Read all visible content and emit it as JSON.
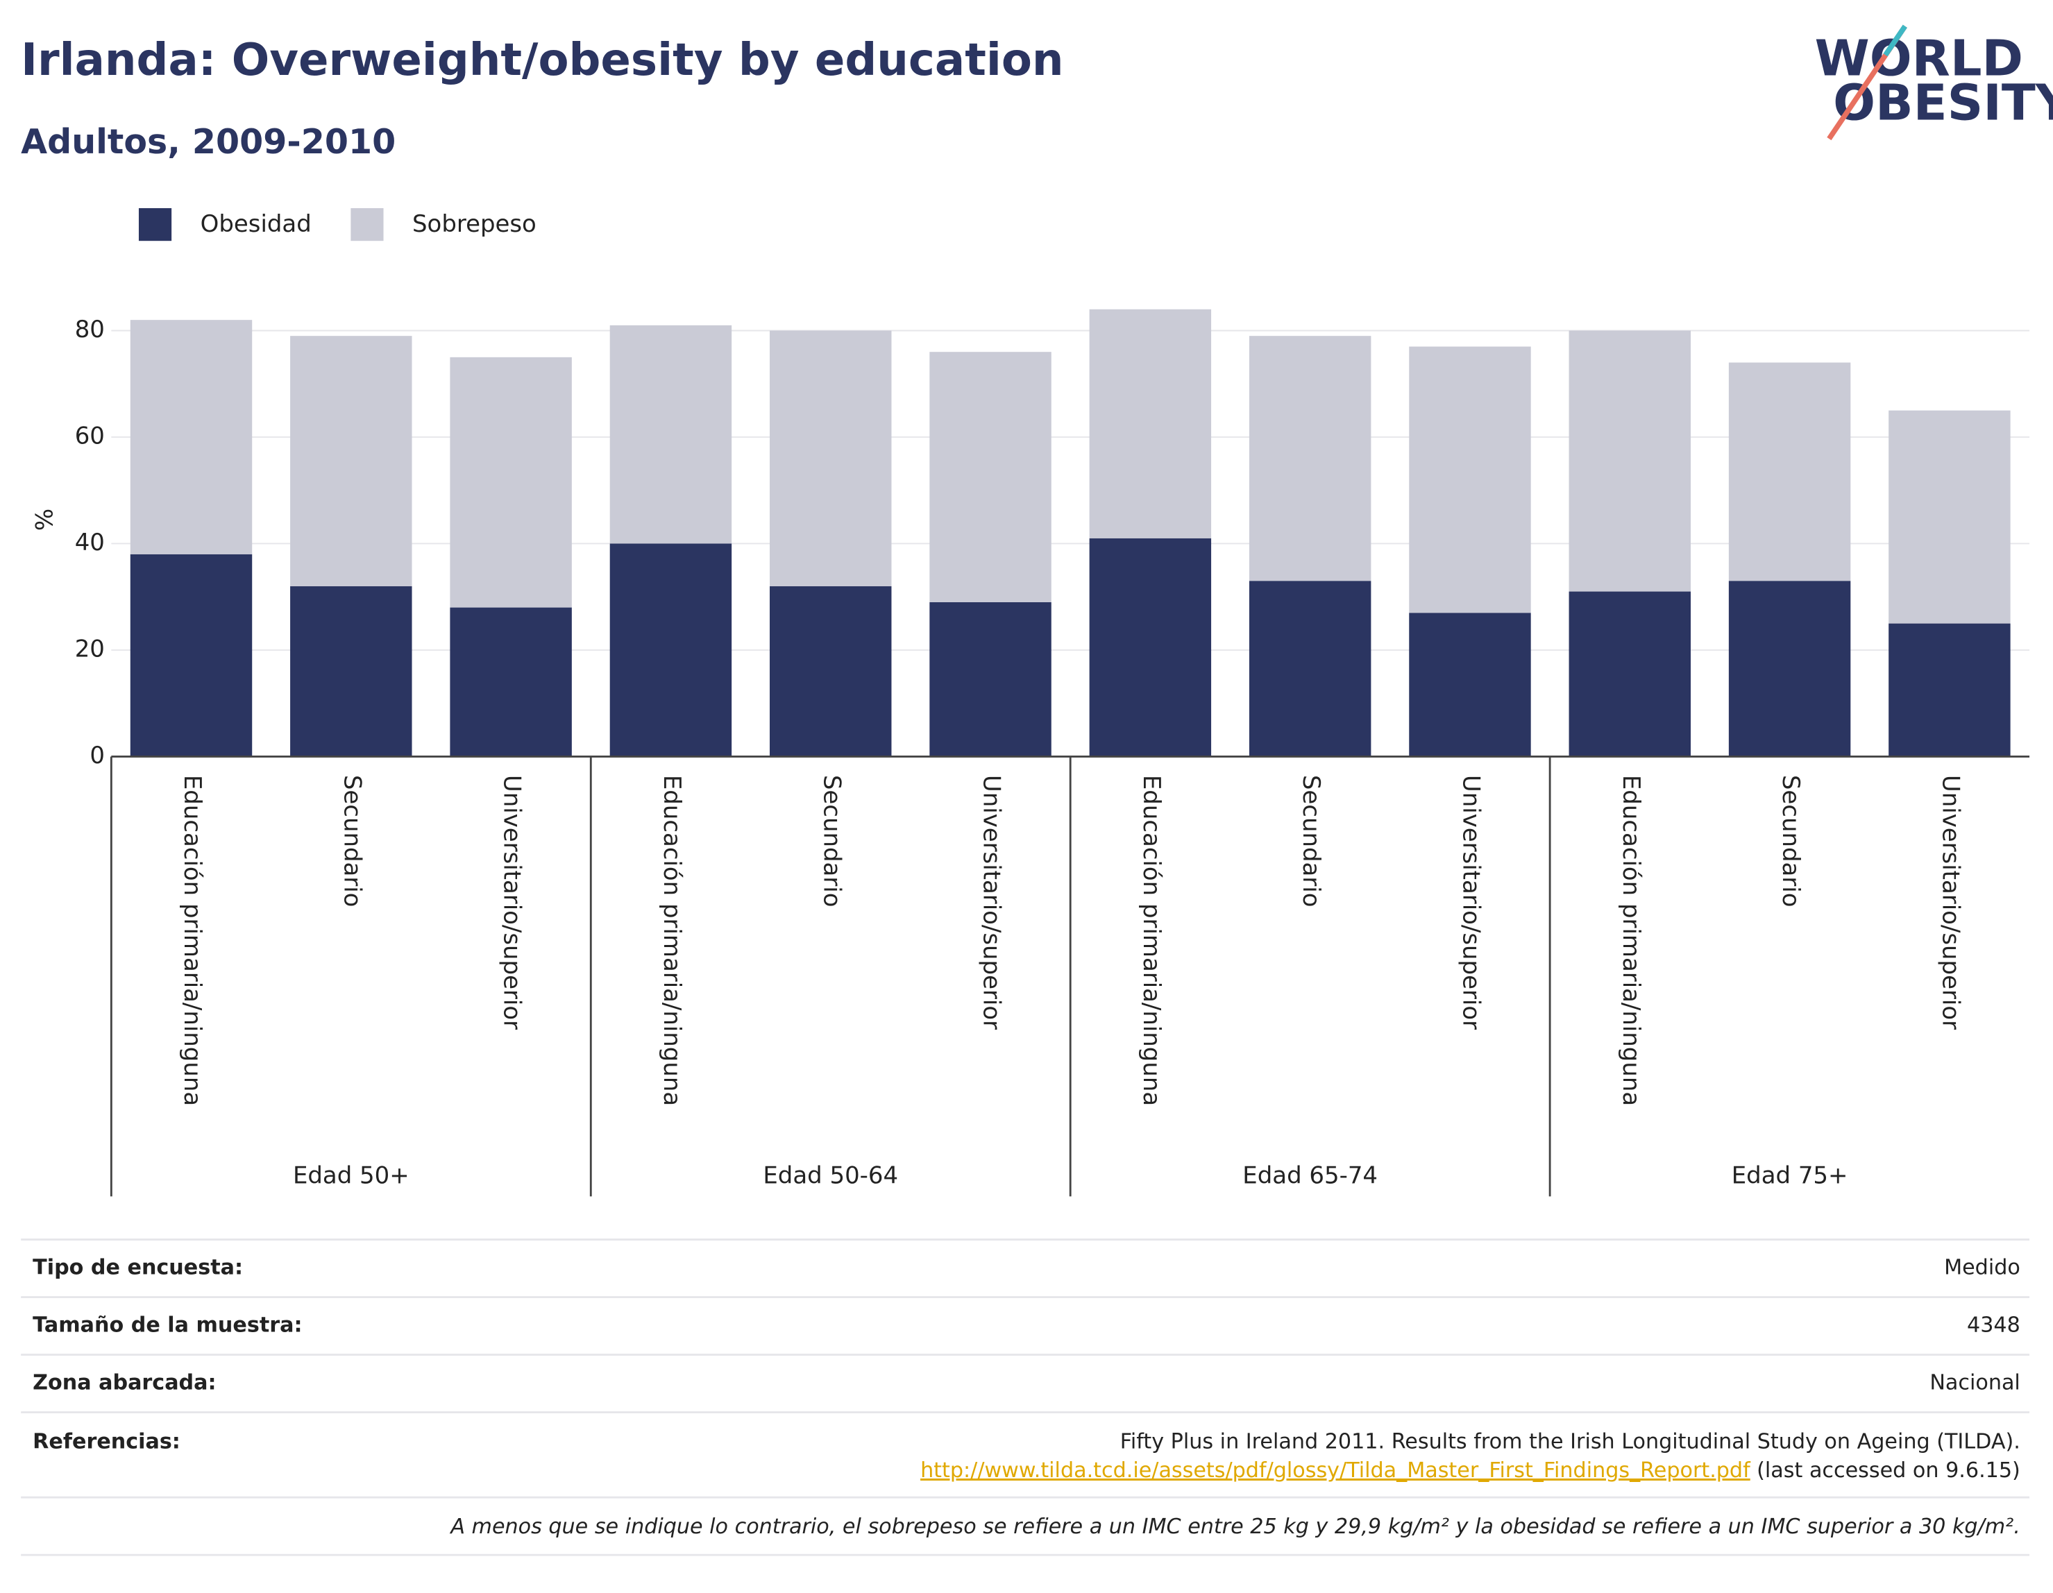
{
  "logo": [
    "WORLD",
    "OBESITY"
  ],
  "chart_data": {
    "type": "stacked_bar",
    "title": "Irlanda: Overweight/obesity by education",
    "subtitle": "Adultos, 2009-2010",
    "ylabel": "%",
    "categories": [
      "Educación primaria/ninguna",
      "Secundario",
      "Universitario/superior",
      "Educación primaria/ninguna",
      "Secundario",
      "Universitario/superior",
      "Educación primaria/ninguna",
      "Secundario",
      "Universitario/superior",
      "Educación primaria/ninguna",
      "Secundario",
      "Universitario/superior"
    ],
    "groups": [
      "Edad 50+",
      "Edad 50-64",
      "Edad 65-74",
      "Edad 75+"
    ],
    "series": [
      {
        "name": "Obesidad",
        "color": "#2b3561",
        "values": [
          38,
          32,
          28,
          40,
          32,
          29,
          41,
          33,
          27,
          31,
          33,
          25
        ]
      },
      {
        "name": "Sobrepeso",
        "color": "#cacbd6",
        "values": [
          44,
          47,
          47,
          41,
          48,
          47,
          43,
          46,
          50,
          49,
          41,
          40
        ]
      }
    ],
    "ylim": [
      0,
      88
    ],
    "yticks": [
      0,
      20,
      40,
      60,
      80
    ],
    "grid": true
  },
  "footer": {
    "rows": [
      {
        "label": "Tipo de encuesta:",
        "value": "Medido"
      },
      {
        "label": "Tamaño de la muestra:",
        "value": "4348"
      },
      {
        "label": "Zona abarcada:",
        "value": "Nacional"
      }
    ],
    "references": {
      "label": "Referencias:",
      "text": "Fifty Plus in Ireland 2011. Results from the Irish Longitudinal Study on Ageing (TILDA).",
      "url": "http://www.tilda.tcd.ie/assets/pdf/glossy/Tilda_Master_First_Findings_Report.pdf",
      "accessed": "(last accessed on 9.6.15)"
    },
    "note": "A menos que se indique lo contrario, el sobrepeso se refiere a un IMC entre 25 kg y 29,9 kg/m² y la obesidad se refiere a un IMC superior a 30 kg/m²."
  }
}
